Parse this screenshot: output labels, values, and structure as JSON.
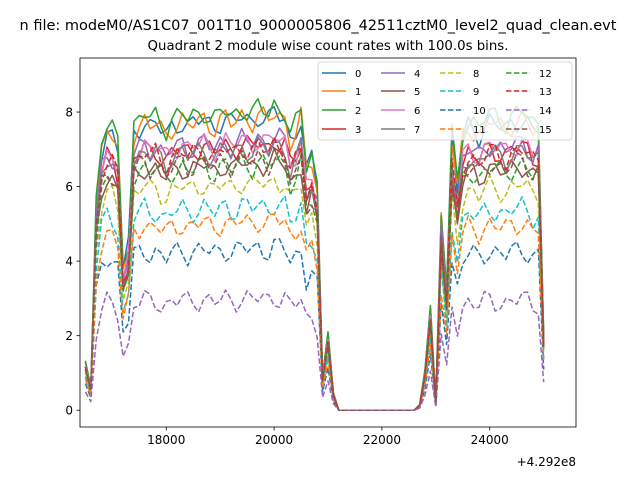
{
  "figure": {
    "suptitle": "n file: modeM0/AS1C07_001T10_9000005806_42511cztM0_level2_quad_clean.evt",
    "offset_label": "+4.292e8"
  },
  "chart_data": {
    "type": "line",
    "title": "Quadrant 2 module wise count rates with 100.0s bins.",
    "xlabel": "",
    "ylabel": "",
    "x_offset": 429200000,
    "xlim": [
      16400,
      25600
    ],
    "ylim": [
      -0.45,
      9.45
    ],
    "x_ticks": [
      18000,
      20000,
      22000,
      24000
    ],
    "x_tick_labels": [
      "18000",
      "20000",
      "22000",
      "24000"
    ],
    "y_ticks": [
      0,
      2,
      4,
      6,
      8
    ],
    "y_tick_labels": [
      "0",
      "2",
      "4",
      "6",
      "8"
    ],
    "grid": false,
    "legend_placement": "top-right",
    "legend_columns": 4,
    "bin_seconds": 100.0,
    "x_start": 16500,
    "x_step": 100,
    "series": [
      {
        "name": "0",
        "color": "#1f77b4",
        "style": "solid",
        "base": 7.6
      },
      {
        "name": "1",
        "color": "#ff7f0e",
        "style": "solid",
        "base": 7.6
      },
      {
        "name": "2",
        "color": "#2ca02c",
        "style": "solid",
        "base": 7.8
      },
      {
        "name": "3",
        "color": "#d62728",
        "style": "solid",
        "base": 6.9
      },
      {
        "name": "4",
        "color": "#9467bd",
        "style": "solid",
        "base": 7.0
      },
      {
        "name": "5",
        "color": "#8c564b",
        "style": "solid",
        "base": 6.4
      },
      {
        "name": "6",
        "color": "#e377c2",
        "style": "solid",
        "base": 7.0
      },
      {
        "name": "7",
        "color": "#7f7f7f",
        "style": "solid",
        "base": 6.8
      },
      {
        "name": "8",
        "color": "#bcbd22",
        "style": "dashed",
        "base": 5.9
      },
      {
        "name": "9",
        "color": "#17becf",
        "style": "dashed",
        "base": 5.3
      },
      {
        "name": "10",
        "color": "#1f77b4",
        "style": "dashed",
        "base": 4.2
      },
      {
        "name": "11",
        "color": "#ff7f0e",
        "style": "dashed",
        "base": 4.9
      },
      {
        "name": "12",
        "color": "#2ca02c",
        "style": "dashed",
        "base": 6.4
      },
      {
        "name": "13",
        "color": "#d62728",
        "style": "dashed",
        "base": 6.8
      },
      {
        "name": "14",
        "color": "#9467bd",
        "style": "dashed",
        "base": 2.9
      },
      {
        "name": "15",
        "color": "#8c564b",
        "style": "dashed",
        "base": 6.5
      }
    ],
    "profile": [
      0.17,
      0.08,
      0.72,
      0.92,
      0.98,
      0.97,
      0.92,
      0.5,
      0.58,
      0.98,
      1.0,
      1.02,
      1.0,
      1.01,
      0.99,
      0.97,
      1.0,
      1.01,
      1.02,
      1.0,
      1.01,
      1.02,
      1.03,
      1.01,
      1.0,
      1.02,
      1.03,
      1.01,
      1.02,
      1.04,
      1.03,
      1.02,
      1.04,
      1.03,
      1.02,
      1.05,
      1.04,
      1.03,
      0.95,
      0.98,
      1.03,
      0.84,
      0.88,
      0.78,
      0.12,
      0.27,
      0.06,
      0.0,
      0.0,
      0.0,
      0.0,
      0.0,
      0.0,
      0.0,
      0.0,
      0.0,
      0.0,
      0.0,
      0.0,
      0.0,
      0.0,
      0.0,
      0.02,
      0.14,
      0.36,
      0.03,
      0.68,
      0.42,
      0.95,
      0.78,
      0.96,
      1.0,
      0.99,
      0.97,
      1.0,
      1.02,
      1.01,
      1.0,
      0.99,
      1.01,
      1.02,
      1.03,
      1.01,
      0.98,
      0.99,
      0.26
    ]
  }
}
